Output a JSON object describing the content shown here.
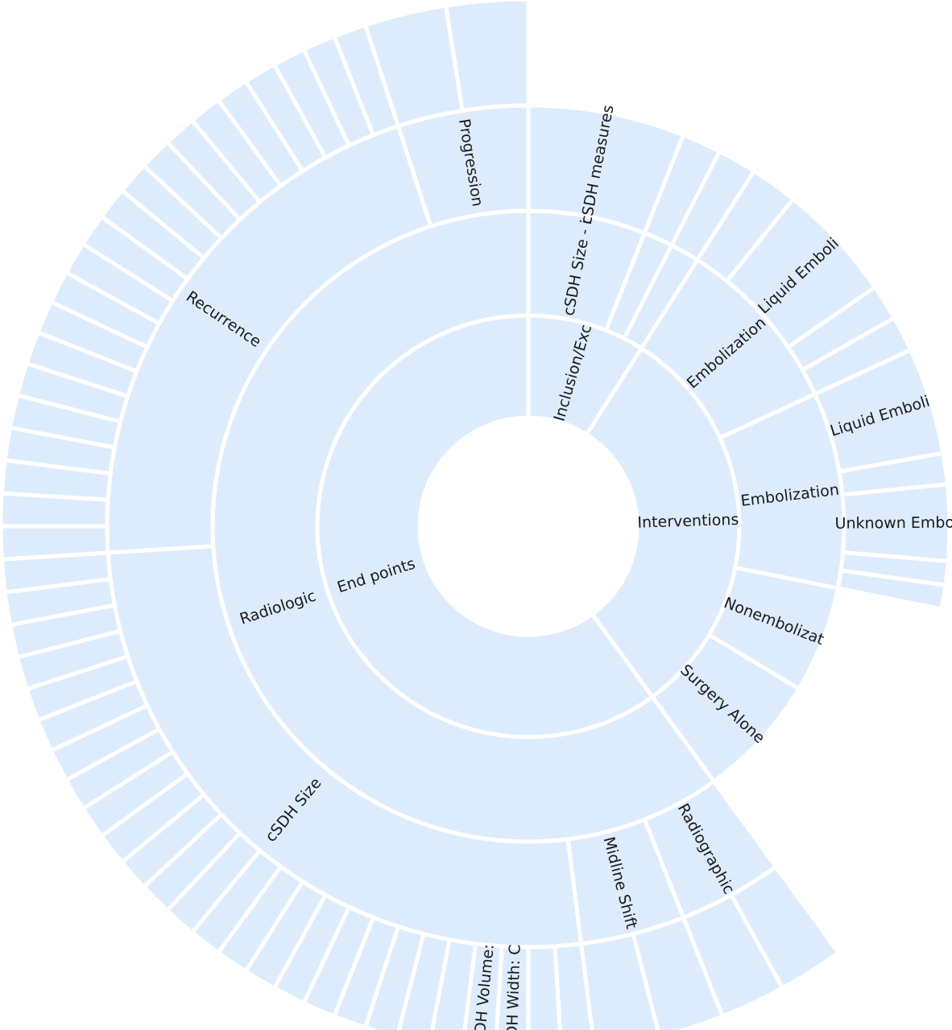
{
  "chart_data": {
    "type": "sunburst",
    "fill_color": "#ddecfc",
    "stroke_color": "#ffffff",
    "nodes": [
      {
        "label": "Inclusion/Exc",
        "value": 9,
        "children": [
          {
            "label": "cSDH Size - i",
            "value": 6,
            "children": [
              {
                "label": "cSDH measures",
                "value": 6
              }
            ]
          },
          {
            "label": "",
            "value": 1.5,
            "children": [
              {
                "label": "",
                "value": 1.5
              }
            ]
          },
          {
            "label": "",
            "value": 1.5,
            "children": [
              {
                "label": "",
                "value": 1.5
              }
            ]
          }
        ]
      },
      {
        "label": "Interventions",
        "value": 31,
        "children": [
          {
            "label": "Embolization",
            "value": 10,
            "children": [
              {
                "label": "",
                "value": 2
              },
              {
                "label": "Liquid Emboli",
                "value": 5
              },
              {
                "label": "",
                "value": 1.5
              },
              {
                "label": "",
                "value": 1.5
              }
            ]
          },
          {
            "label": "Embolization",
            "value": 11,
            "children": [
              {
                "label": "Liquid Emboli",
                "value": 4.5
              },
              {
                "label": "",
                "value": 1.3
              },
              {
                "label": "Unknown Embol",
                "value": 3.2
              },
              {
                "label": "",
                "value": 1
              },
              {
                "label": "",
                "value": 1
              }
            ]
          },
          {
            "label": "Nonembolizat",
            "value": 6
          },
          {
            "label": "Surgery Alone",
            "value": 7
          }
        ]
      },
      {
        "label": "End points",
        "value": 60,
        "children": [
          {
            "label": "Radiologic",
            "value": 60,
            "children": [
              {
                "label": "Radiographic",
                "value": 4,
                "children": [
                  {
                    "label": "",
                    "value": 2
                  },
                  {
                    "label": "",
                    "value": 2
                  }
                ]
              },
              {
                "label": "Midline Shift",
                "value": 4,
                "children": [
                  {
                    "label": "",
                    "value": 2
                  },
                  {
                    "label": "",
                    "value": 2
                  }
                ]
              },
              {
                "label": "cSDH Size",
                "value": 26,
                "children": [
                  {
                    "label": "",
                    "value": 1
                  },
                  {
                    "label": "",
                    "value": 1
                  },
                  {
                    "label": "cSDH Width: C",
                    "value": 1
                  },
                  {
                    "label": "cSDH Volume:",
                    "value": 1
                  },
                  {
                    "label": "",
                    "value": 1
                  },
                  {
                    "label": "",
                    "value": 1
                  },
                  {
                    "label": "",
                    "value": 1
                  },
                  {
                    "label": "",
                    "value": 1
                  },
                  {
                    "label": "",
                    "value": 1
                  },
                  {
                    "label": "",
                    "value": 1
                  },
                  {
                    "label": "",
                    "value": 1
                  },
                  {
                    "label": "",
                    "value": 1
                  },
                  {
                    "label": "",
                    "value": 1
                  },
                  {
                    "label": "",
                    "value": 1
                  },
                  {
                    "label": "",
                    "value": 1
                  },
                  {
                    "label": "",
                    "value": 1
                  },
                  {
                    "label": "",
                    "value": 1
                  },
                  {
                    "label": "",
                    "value": 1
                  },
                  {
                    "label": "",
                    "value": 1
                  },
                  {
                    "label": "",
                    "value": 1
                  },
                  {
                    "label": "",
                    "value": 1
                  },
                  {
                    "label": "",
                    "value": 1
                  },
                  {
                    "label": "",
                    "value": 1
                  },
                  {
                    "label": "",
                    "value": 1
                  },
                  {
                    "label": "",
                    "value": 1
                  },
                  {
                    "label": "",
                    "value": 1
                  }
                ]
              },
              {
                "label": "Recurrence",
                "value": 21,
                "children": [
                  {
                    "label": "",
                    "value": 1
                  },
                  {
                    "label": "",
                    "value": 1
                  },
                  {
                    "label": "",
                    "value": 1
                  },
                  {
                    "label": "",
                    "value": 1
                  },
                  {
                    "label": "",
                    "value": 1
                  },
                  {
                    "label": "",
                    "value": 1
                  },
                  {
                    "label": "",
                    "value": 1
                  },
                  {
                    "label": "",
                    "value": 1
                  },
                  {
                    "label": "",
                    "value": 1
                  },
                  {
                    "label": "",
                    "value": 1
                  },
                  {
                    "label": "",
                    "value": 1
                  },
                  {
                    "label": "",
                    "value": 1
                  },
                  {
                    "label": "",
                    "value": 1
                  },
                  {
                    "label": "",
                    "value": 1
                  },
                  {
                    "label": "",
                    "value": 1
                  },
                  {
                    "label": "",
                    "value": 1
                  },
                  {
                    "label": "",
                    "value": 1
                  },
                  {
                    "label": "",
                    "value": 1
                  },
                  {
                    "label": "",
                    "value": 1
                  },
                  {
                    "label": "",
                    "value": 1
                  },
                  {
                    "label": "",
                    "value": 1
                  }
                ]
              },
              {
                "label": "Progression",
                "value": 5,
                "children": [
                  {
                    "label": "",
                    "value": 2.5
                  },
                  {
                    "label": "",
                    "value": 2.5
                  }
                ]
              }
            ]
          }
        ]
      }
    ]
  }
}
